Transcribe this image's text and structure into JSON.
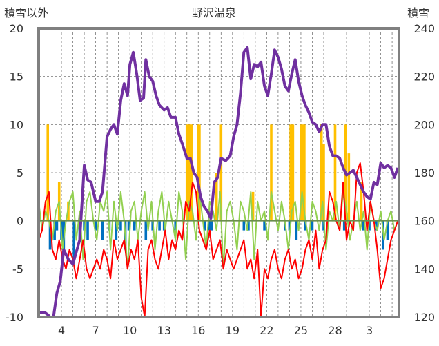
{
  "chart_data": {
    "type": "line",
    "title": "野沢温泉",
    "ylabel_left": "積雪以外",
    "ylabel_right": "積雪",
    "x_tick_labels": [
      "4",
      "7",
      "10",
      "13",
      "16",
      "19",
      "22",
      "25",
      "28",
      "3"
    ],
    "x_range": [
      2,
      33.6
    ],
    "y_left_ticks": [
      "20",
      "15",
      "10",
      "5",
      "0",
      "-5",
      "-10"
    ],
    "y_left_range": [
      -10,
      20
    ],
    "y_right_ticks": [
      "240",
      "220",
      "200",
      "180",
      "160",
      "140",
      "120"
    ],
    "y_right_range": [
      120,
      240
    ],
    "grid": "dashed",
    "colors": {
      "snow_depth": "#7030a0",
      "red_series": "#ff0000",
      "green_series": "#92d050",
      "blue_bars": "#0070c0",
      "yellow_bars": "#ffc000",
      "frame": "#808080",
      "zero_line": "#6b8e4e"
    },
    "series": [
      {
        "axis": "right",
        "color": "#7030a0",
        "x": [
          2.0,
          2.5,
          2.8,
          3.0,
          3.3,
          3.6,
          3.9,
          4.2,
          4.6,
          5.0,
          5.3,
          5.6,
          6.0,
          6.3,
          6.6,
          7.0,
          7.3,
          7.6,
          8.0,
          8.3,
          8.6,
          8.9,
          9.2,
          9.5,
          9.8,
          10.0,
          10.3,
          10.6,
          10.9,
          11.2,
          11.4,
          11.7,
          12.0,
          12.3,
          12.6,
          13.0,
          13.3,
          13.6,
          14.0,
          14.3,
          14.6,
          15.0,
          15.3,
          15.6,
          15.9,
          16.2,
          16.5,
          16.8,
          17.1,
          17.4,
          17.7,
          18.0,
          18.4,
          18.8,
          19.1,
          19.4,
          19.7,
          20.0,
          20.3,
          20.6,
          20.9,
          21.2,
          21.5,
          21.8,
          22.1,
          22.4,
          22.7,
          23.0,
          23.3,
          23.6,
          23.9,
          24.2,
          24.5,
          24.8,
          25.1,
          25.4,
          25.7,
          26.0,
          26.3,
          26.6,
          26.9,
          27.2,
          27.5,
          27.8,
          28.1,
          28.4,
          28.7,
          29.0,
          29.3,
          29.6,
          29.9,
          30.2,
          30.5,
          30.8,
          31.1,
          31.4,
          31.7,
          32.0,
          32.3,
          32.6,
          32.9,
          33.2,
          33.5
        ],
        "values": [
          122,
          122,
          121,
          120,
          120,
          130,
          135,
          148,
          144,
          142,
          147,
          152,
          183,
          177,
          176,
          168,
          168,
          172,
          195,
          198,
          200,
          196,
          210,
          217,
          212,
          225,
          230,
          221,
          210,
          211,
          227,
          220,
          218,
          212,
          208,
          206,
          207,
          203,
          203,
          196,
          192,
          186,
          186,
          180,
          178,
          170,
          166,
          164,
          161,
          176,
          178,
          186,
          185,
          187,
          195,
          200,
          213,
          230,
          232,
          219,
          225,
          224,
          226,
          216,
          212,
          221,
          231,
          228,
          223,
          216,
          214,
          221,
          227,
          218,
          212,
          208,
          205,
          201,
          200,
          197,
          200,
          200,
          191,
          187,
          187,
          186,
          182,
          179,
          180,
          181,
          178,
          175,
          172,
          170,
          169,
          176,
          175,
          184,
          182,
          183,
          182,
          178,
          182
        ]
      },
      {
        "axis": "left",
        "color": "#ff0000",
        "x": [
          2.0,
          2.3,
          2.6,
          2.9,
          3.2,
          3.5,
          3.8,
          4.1,
          4.4,
          4.7,
          5.0,
          5.3,
          5.6,
          5.9,
          6.2,
          6.5,
          6.8,
          7.1,
          7.4,
          7.7,
          8.0,
          8.3,
          8.6,
          8.9,
          9.2,
          9.5,
          9.8,
          10.1,
          10.4,
          10.7,
          11.0,
          11.3,
          11.6,
          11.9,
          12.2,
          12.5,
          12.8,
          13.1,
          13.4,
          13.7,
          14.0,
          14.3,
          14.6,
          14.9,
          15.2,
          15.5,
          15.8,
          16.1,
          16.4,
          16.7,
          17.0,
          17.3,
          17.6,
          17.9,
          18.2,
          18.5,
          18.8,
          19.1,
          19.4,
          19.7,
          20.0,
          20.3,
          20.6,
          20.9,
          21.2,
          21.5,
          21.8,
          22.1,
          22.4,
          22.7,
          23.0,
          23.3,
          23.6,
          23.9,
          24.2,
          24.5,
          24.8,
          25.1,
          25.4,
          25.7,
          26.0,
          26.3,
          26.6,
          26.9,
          27.2,
          27.5,
          27.8,
          28.1,
          28.4,
          28.7,
          29.0,
          29.3,
          29.6,
          29.9,
          30.2,
          30.5,
          30.8,
          31.1,
          31.4,
          31.7,
          32.0,
          32.3,
          32.6,
          32.9,
          33.2,
          33.5
        ],
        "values": [
          -2,
          -1,
          2,
          3,
          -3,
          -4,
          -2,
          -4,
          -5,
          -3,
          -4,
          -6,
          -4,
          -2,
          -5,
          -6,
          -5,
          -4,
          -5,
          -3,
          -4,
          -6,
          -2,
          -4,
          -3,
          -2,
          -5,
          -3,
          -4,
          -2,
          -8,
          -10,
          -3,
          -2,
          -4,
          -5,
          -3,
          -1,
          -4,
          -2,
          -3,
          -1,
          -2,
          2,
          1,
          4,
          3,
          -1,
          -2,
          -3,
          -1,
          -4,
          -3,
          -2,
          -5,
          -3,
          -4,
          -5,
          -4,
          -3,
          -2,
          -5,
          -4,
          -6,
          -3,
          -10,
          -5,
          -6,
          -4,
          -3,
          -5,
          -6,
          -4,
          -3,
          -5,
          -4,
          -6,
          -5,
          -3,
          -2,
          -4,
          -1,
          -5,
          -3,
          -2,
          3,
          2,
          0,
          -1,
          4,
          -2,
          0,
          -1,
          5,
          6,
          3,
          -1,
          2,
          0,
          -3,
          -7,
          -6,
          -4,
          -2,
          -1,
          0
        ]
      },
      {
        "axis": "left",
        "color": "#92d050",
        "x": [
          2.0,
          2.3,
          2.6,
          2.9,
          3.2,
          3.5,
          3.8,
          4.1,
          4.4,
          4.7,
          5.0,
          5.3,
          5.6,
          5.9,
          6.2,
          6.5,
          6.8,
          7.1,
          7.4,
          7.7,
          8.0,
          8.3,
          8.6,
          8.9,
          9.2,
          9.5,
          9.8,
          10.1,
          10.4,
          10.7,
          11.0,
          11.3,
          11.6,
          11.9,
          12.2,
          12.5,
          12.8,
          13.1,
          13.4,
          13.7,
          14.0,
          14.3,
          14.6,
          14.9,
          15.2,
          15.5,
          15.8,
          16.1,
          16.4,
          16.7,
          17.0,
          17.3,
          17.6,
          17.9,
          18.2,
          18.5,
          18.8,
          19.1,
          19.4,
          19.7,
          20.0,
          20.3,
          20.6,
          20.9,
          21.2,
          21.5,
          21.8,
          22.1,
          22.4,
          22.7,
          23.0,
          23.3,
          23.6,
          23.9,
          24.2,
          24.5,
          24.8,
          25.1,
          25.4,
          25.7,
          26.0,
          26.3,
          26.6,
          26.9,
          27.2,
          27.5,
          27.8,
          28.1,
          28.4,
          28.7,
          29.0,
          29.3,
          29.6,
          29.9,
          30.2,
          30.5,
          30.8,
          31.1,
          31.4,
          31.7,
          32.0,
          32.3,
          32.6,
          32.9,
          33.2,
          33.5
        ],
        "values": [
          2,
          -1,
          1,
          0,
          -2,
          1,
          2,
          -3,
          0,
          2,
          3,
          -2,
          1,
          -4,
          2,
          3,
          0,
          -2,
          2,
          1,
          3,
          -3,
          2,
          -1,
          3,
          0,
          -5,
          1,
          2,
          -2,
          1,
          3,
          -1,
          2,
          -3,
          1,
          3,
          -1,
          2,
          0,
          -2,
          3,
          1,
          -4,
          2,
          1,
          -2,
          3,
          0,
          -3,
          2,
          1,
          -1,
          3,
          -5,
          1,
          2,
          0,
          -3,
          2,
          1,
          -1,
          3,
          -4,
          2,
          0,
          1,
          -2,
          3,
          1,
          -1,
          2,
          0,
          -3,
          1,
          2,
          -1,
          3,
          0,
          -2,
          2,
          1,
          -1,
          2,
          -3,
          1,
          0,
          2,
          -1,
          3,
          1,
          -2,
          0,
          2,
          -1,
          1,
          -3,
          2,
          0,
          -1,
          1,
          -2,
          0,
          1,
          -1,
          0
        ]
      },
      {
        "axis": "left",
        "type": "bar",
        "color": "#ffc000",
        "x": [
          2.8,
          3.8,
          4.6,
          15.0,
          15.1,
          15.2,
          15.3,
          15.4,
          16.0,
          16.1,
          17.6,
          18.0,
          20.8,
          22.4,
          24.1,
          24.2,
          24.3,
          25.0,
          25.1,
          25.2,
          25.3,
          26.8,
          27.0,
          28.0,
          28.9,
          29.2,
          30.3
        ],
        "values": [
          10,
          4,
          2,
          10,
          10,
          10,
          10,
          10,
          10,
          10,
          5,
          10,
          3,
          10,
          10,
          10,
          10,
          10,
          10,
          10,
          10,
          10,
          8,
          10,
          10,
          7,
          4
        ]
      },
      {
        "axis": "left",
        "type": "bar",
        "color": "#0070c0",
        "x": [
          3.0,
          3.4,
          3.6,
          4.0,
          4.2,
          5.1,
          5.6,
          6.0,
          6.3,
          7.0,
          7.6,
          8.2,
          8.8,
          9.2,
          9.6,
          9.9,
          10.4,
          11.4,
          12.0,
          12.6,
          13.0,
          14.0,
          16.6,
          17.0,
          17.2,
          20.0,
          20.4,
          21.8,
          23.6,
          24.0,
          24.6,
          25.4,
          26.0,
          27.0,
          28.8,
          30.5,
          31.0,
          31.6,
          32.2,
          32.6
        ],
        "values": [
          -3,
          -2,
          -1,
          -2,
          -3,
          -4,
          -2,
          -1,
          -2,
          -1,
          -2,
          -1,
          -2,
          -1,
          -3,
          -1,
          -1,
          -2,
          -1,
          -1,
          -1,
          -1,
          -1,
          -1,
          -1,
          -1,
          -1,
          -1,
          -1,
          -1,
          -2,
          -1,
          -1,
          -1,
          -1,
          -1,
          -1,
          -1,
          -3,
          -2
        ]
      }
    ]
  }
}
